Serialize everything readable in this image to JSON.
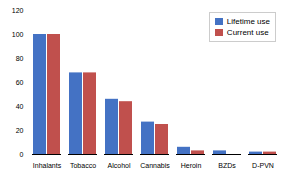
{
  "chart_data": {
    "type": "bar",
    "categories": [
      "Inhalants",
      "Tobacco",
      "Alcohol",
      "Cannabis",
      "Heroin",
      "BZDs",
      "D-PVN"
    ],
    "series": [
      {
        "name": "Lifetime use",
        "color": "#4472C4",
        "values": [
          100,
          68,
          46,
          27,
          6,
          3,
          2
        ]
      },
      {
        "name": "Current use",
        "color": "#C0504D",
        "values": [
          100,
          68,
          44,
          25,
          3,
          0,
          2
        ]
      }
    ],
    "ylim": [
      0,
      120
    ],
    "yticks": [
      0,
      20,
      40,
      60,
      80,
      100,
      120
    ],
    "grid": false,
    "legend": "upper right"
  }
}
